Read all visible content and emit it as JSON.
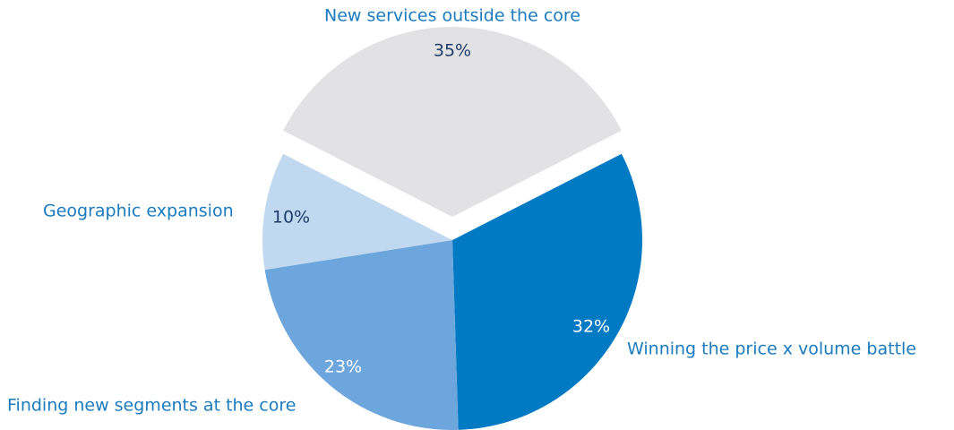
{
  "chart_data": {
    "type": "pie",
    "categories": [
      "Winning the price x volume battle",
      "Finding new segments at the core",
      "Geographic expansion",
      "New services outside the core"
    ],
    "values": [
      32,
      23,
      10,
      35
    ],
    "value_labels": [
      "32%",
      "23%",
      "10%",
      "35%"
    ],
    "colors": [
      "#007ac3",
      "#6ca6dc",
      "#c0d9f0",
      "#e2e1e3"
    ],
    "explode": [
      false,
      false,
      false,
      true
    ]
  }
}
